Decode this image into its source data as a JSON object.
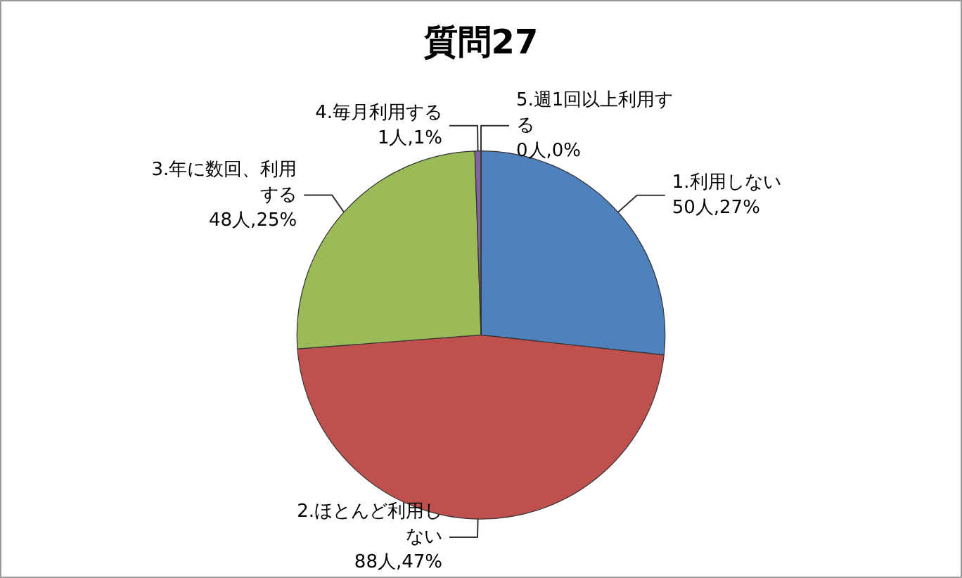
{
  "chart_data": {
    "type": "pie",
    "title": "質問27",
    "categories": [
      "1.利用しない",
      "2.ほとんど利用しない",
      "3.年に数回、利用する",
      "4.毎月利用する",
      "5.週1回以上利用する"
    ],
    "values": [
      50,
      88,
      48,
      1,
      0
    ],
    "value_labels": [
      "50人,27%",
      "88人,47%",
      "48人,25%",
      "1人,1%",
      "0人,0%"
    ],
    "colors": [
      "#4f81bd",
      "#c0504d",
      "#9bbb59",
      "#8064a2",
      "#4bacc6"
    ],
    "legend": false
  }
}
